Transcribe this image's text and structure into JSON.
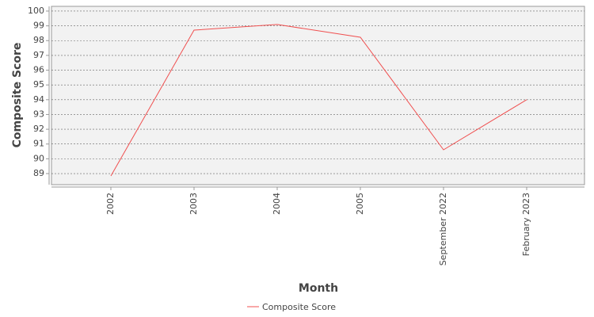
{
  "chart_data": {
    "type": "line",
    "x_label": "Month",
    "y_label": "Composite Score",
    "categories": [
      "2002",
      "2003",
      "2004",
      "2005",
      "September 2022",
      "February 2023"
    ],
    "series": [
      {
        "name": "Composite Score",
        "color": "#f05050",
        "values": [
          88.84,
          98.71,
          99.09,
          98.23,
          90.61,
          94.0
        ]
      }
    ],
    "ylim": [
      88.25,
      100.32
    ],
    "yticks": [
      89,
      90,
      91,
      92,
      93,
      94,
      95,
      96,
      97,
      98,
      99,
      100
    ],
    "grid": true,
    "legend": "bottom"
  }
}
